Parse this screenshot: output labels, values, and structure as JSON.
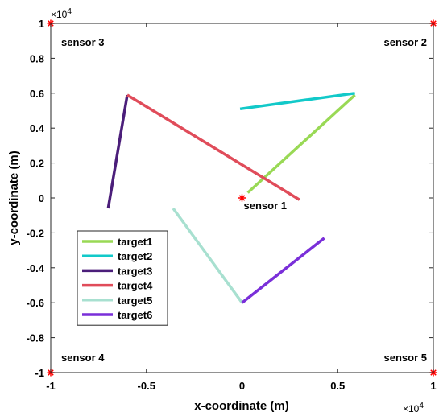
{
  "chart_data": {
    "type": "line",
    "xlabel": "x-coordinate (m)",
    "ylabel": "y-coordinate (m)",
    "x_multiplier": "×10",
    "x_multiplier_exp": "4",
    "y_multiplier": "×10",
    "y_multiplier_exp": "4",
    "xlim": [
      -10000,
      10000
    ],
    "ylim": [
      -10000,
      10000
    ],
    "xticks": [
      -10000,
      -5000,
      0,
      5000,
      10000
    ],
    "xtick_labels": [
      "-1",
      "-0.5",
      "0",
      "0.5",
      "1"
    ],
    "yticks": [
      -10000,
      -8000,
      -6000,
      -4000,
      -2000,
      0,
      2000,
      4000,
      6000,
      8000,
      10000
    ],
    "ytick_labels": [
      "-1",
      "-0.8",
      "-0.6",
      "-0.4",
      "-0.2",
      "0",
      "0.2",
      "0.4",
      "0.6",
      "0.8",
      "1"
    ],
    "grid": false,
    "legend_position": "bottom-left",
    "sensor_marker_color": "#ff0000",
    "sensors": [
      {
        "label": "sensor 1",
        "x": 0,
        "y": 0
      },
      {
        "label": "sensor 2",
        "x": 10000,
        "y": 10000
      },
      {
        "label": "sensor 3",
        "x": -10000,
        "y": 10000
      },
      {
        "label": "sensor 4",
        "x": -10000,
        "y": -10000
      },
      {
        "label": "sensor 5",
        "x": 10000,
        "y": -10000
      }
    ],
    "series": [
      {
        "name": "target1",
        "color": "#99d955",
        "points": [
          [
            300,
            300
          ],
          [
            5900,
            5900
          ]
        ]
      },
      {
        "name": "target2",
        "color": "#12c9c9",
        "points": [
          [
            -100,
            5100
          ],
          [
            5900,
            6000
          ]
        ]
      },
      {
        "name": "target3",
        "color": "#4b1e7a",
        "points": [
          [
            -7000,
            -600
          ],
          [
            -6000,
            5900
          ]
        ]
      },
      {
        "name": "target4",
        "color": "#e04c5a",
        "points": [
          [
            -6000,
            5900
          ],
          [
            3000,
            -100
          ]
        ]
      },
      {
        "name": "target5",
        "color": "#a8e0d0",
        "points": [
          [
            -3600,
            -600
          ],
          [
            0,
            -6000
          ]
        ]
      },
      {
        "name": "target6",
        "color": "#7a2fd9",
        "points": [
          [
            0,
            -6000
          ],
          [
            4300,
            -2300
          ]
        ]
      }
    ]
  }
}
